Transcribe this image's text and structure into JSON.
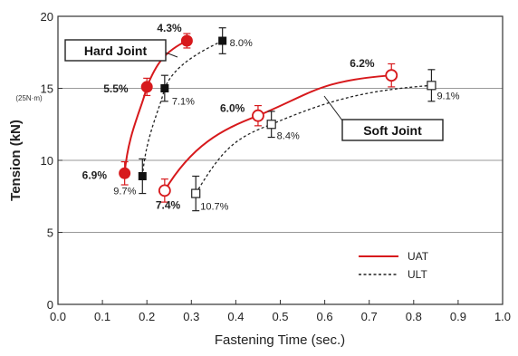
{
  "chart_data": {
    "type": "scatter",
    "title": "",
    "xlabel": "Fastening Time (sec.)",
    "ylabel": "Tension (kN)",
    "xlim": [
      0.0,
      1.0
    ],
    "ylim": [
      0,
      20
    ],
    "x_ticks": [
      "0.0",
      "0.1",
      "0.2",
      "0.3",
      "0.4",
      "0.5",
      "0.6",
      "0.7",
      "0.8",
      "0.9",
      "1.0"
    ],
    "y_ticks": [
      "0",
      "5",
      "10",
      "15",
      "20"
    ],
    "y_tick_sub": "(25N·m)",
    "grid": "horizontal",
    "legend_position": "bottom-right",
    "colors": {
      "uat": "#d7191c",
      "ult": "#222222",
      "axis": "#333333",
      "grid": "#999999"
    },
    "series": [
      {
        "name": "UAT",
        "joint": "hard",
        "line": "solid",
        "marker": "filled-circle",
        "points": [
          {
            "x": 0.15,
            "y": 9.1,
            "err": 0.8,
            "label": "6.9%"
          },
          {
            "x": 0.2,
            "y": 15.1,
            "err": 0.6,
            "label": "5.5%"
          },
          {
            "x": 0.29,
            "y": 18.3,
            "err": 0.5,
            "label": "4.3%"
          }
        ]
      },
      {
        "name": "ULT",
        "joint": "hard",
        "line": "dashed",
        "marker": "filled-square",
        "points": [
          {
            "x": 0.19,
            "y": 8.9,
            "err": 1.2,
            "label": "9.7%"
          },
          {
            "x": 0.24,
            "y": 15.0,
            "err": 0.9,
            "label": "7.1%"
          },
          {
            "x": 0.37,
            "y": 18.3,
            "err": 0.9,
            "label": "8.0%"
          }
        ]
      },
      {
        "name": "UAT",
        "joint": "soft",
        "line": "solid",
        "marker": "open-circle",
        "points": [
          {
            "x": 0.24,
            "y": 7.9,
            "err": 0.8,
            "label": "7.4%"
          },
          {
            "x": 0.45,
            "y": 13.1,
            "err": 0.7,
            "label": "6.0%"
          },
          {
            "x": 0.75,
            "y": 15.9,
            "err": 0.8,
            "label": "6.2%"
          }
        ]
      },
      {
        "name": "ULT",
        "joint": "soft",
        "line": "dashed",
        "marker": "open-square",
        "points": [
          {
            "x": 0.31,
            "y": 7.7,
            "err": 1.2,
            "label": "10.7%"
          },
          {
            "x": 0.48,
            "y": 12.5,
            "err": 0.9,
            "label": "8.4%"
          },
          {
            "x": 0.84,
            "y": 15.2,
            "err": 1.1,
            "label": "9.1%"
          }
        ]
      }
    ],
    "annotations": {
      "hard_joint": "Hard Joint",
      "soft_joint": "Soft Joint"
    },
    "legend": [
      {
        "label": "UAT",
        "line": "solid"
      },
      {
        "label": "ULT",
        "line": "dashed"
      }
    ]
  }
}
